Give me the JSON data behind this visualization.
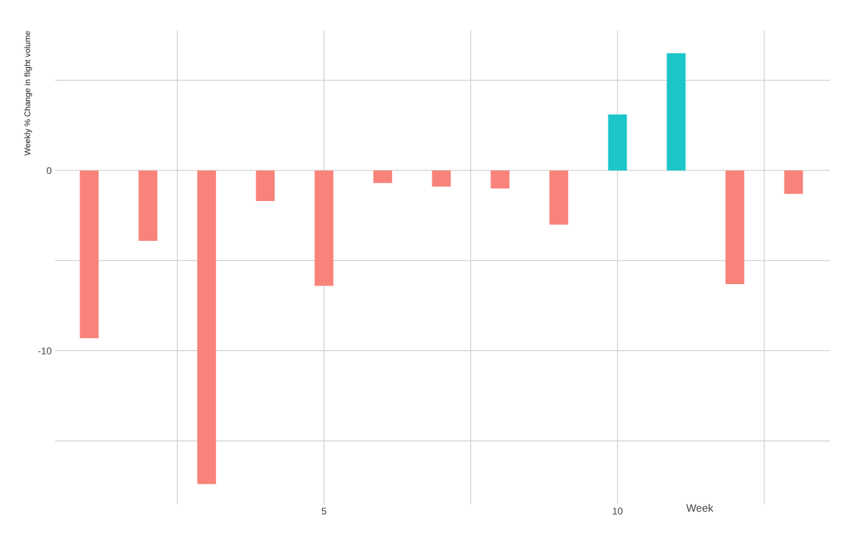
{
  "chart_data": {
    "type": "bar",
    "xlabel": "Week",
    "ylabel": "Weekly % Change in flight volume",
    "x": [
      1,
      2,
      3,
      4,
      5,
      6,
      7,
      8,
      9,
      10,
      11,
      12,
      13
    ],
    "values": [
      -9.3,
      -3.9,
      -17.4,
      -1.7,
      -6.4,
      -0.7,
      -0.9,
      -1.0,
      -3.0,
      3.1,
      6.5,
      -6.3,
      -1.3
    ],
    "colors": [
      "#f8837b",
      "#f8837b",
      "#f8837b",
      "#f8837b",
      "#f8837b",
      "#f8837b",
      "#f8837b",
      "#f8837b",
      "#f8837b",
      "#1bc5c8",
      "#1bc5c8",
      "#f8837b",
      "#f8837b"
    ],
    "xlim": [
      0.42,
      13.62
    ],
    "ylim": [
      -18.5,
      7.75
    ],
    "xticks": [
      {
        "value": 2.5,
        "label": null
      },
      5,
      {
        "value": 7.5,
        "label": null
      },
      10,
      {
        "value": 12.5,
        "label": null
      }
    ],
    "yticks": [
      {
        "value": 5,
        "label": null
      },
      0,
      {
        "value": -5,
        "label": null
      },
      -10,
      {
        "value": -15,
        "label": null
      }
    ],
    "grid": true
  }
}
